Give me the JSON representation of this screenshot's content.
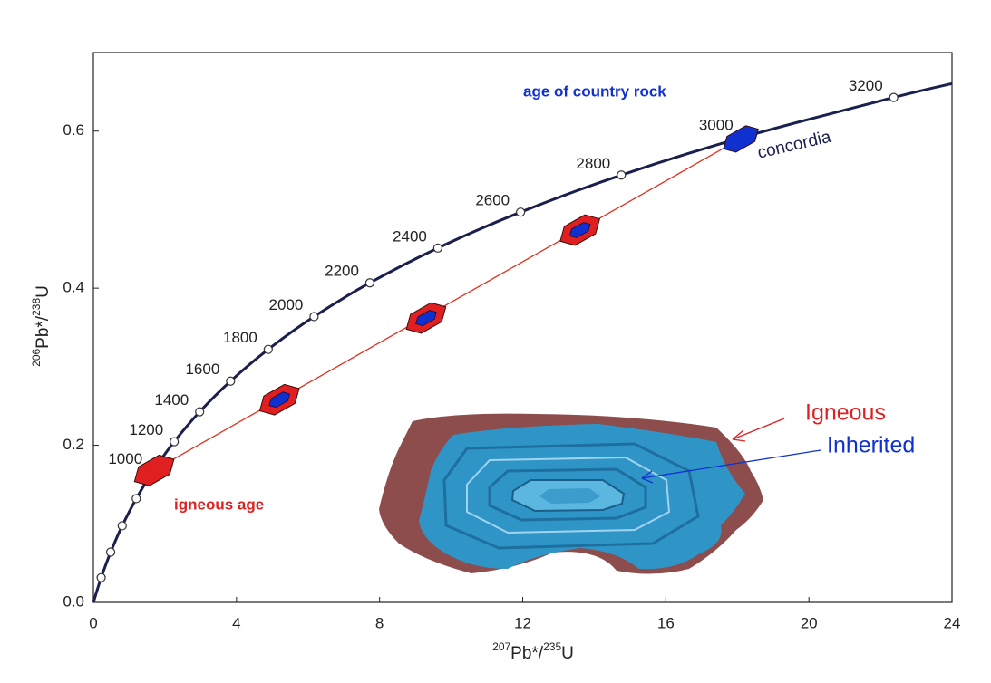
{
  "chart_data": {
    "type": "concordia",
    "xlabel": [
      "207",
      "Pb*/",
      "235",
      "U"
    ],
    "ylabel": [
      "206",
      "Pb*/",
      "238",
      "U"
    ],
    "xlim": [
      0,
      24
    ],
    "ylim": [
      0,
      0.7
    ],
    "xticks": [
      0,
      4,
      8,
      12,
      16,
      20,
      24
    ],
    "yticks": [
      {
        "value": 0,
        "label": "0.0"
      },
      0.2,
      0.4,
      0.6
    ],
    "concordia": {
      "name": "concordia",
      "color": "#1a1f4d",
      "x": [
        0,
        0.2177,
        0.4828,
        0.8056,
        1.1987,
        1.6774,
        2.2604,
        2.9702,
        3.8345,
        4.8868,
        6.1681,
        7.7281,
        9.6275,
        11.9403,
        14.7558,
        18.188,
        22.37,
        24
      ],
      "y": [
        0,
        0.0315,
        0.064,
        0.0975,
        0.1321,
        0.1678,
        0.2046,
        0.2426,
        0.2817,
        0.3221,
        0.3638,
        0.4068,
        0.4511,
        0.4968,
        0.544,
        0.5926,
        0.6428,
        0.6604
      ]
    },
    "markers": {
      "labels": [
        null,
        null,
        null,
        null,
        1000,
        1200,
        1400,
        1600,
        1800,
        2000,
        2200,
        2400,
        2600,
        2800,
        3000,
        3200
      ],
      "x": [
        0.2177,
        0.4828,
        0.8056,
        1.1987,
        1.6774,
        2.2604,
        2.9702,
        3.8345,
        4.8868,
        6.1681,
        7.7281,
        9.6275,
        11.9403,
        14.7558,
        18.188,
        22.37
      ],
      "y": [
        0.0315,
        0.064,
        0.0975,
        0.1321,
        0.1678,
        0.2046,
        0.2426,
        0.2817,
        0.3221,
        0.3638,
        0.4068,
        0.4511,
        0.4968,
        0.544,
        0.5926,
        0.6428
      ]
    },
    "discordia": {
      "color": "#e03020",
      "x": [
        1.68,
        18.19
      ],
      "y": [
        0.168,
        0.593
      ]
    },
    "analyses": {
      "x": [
        1.7,
        5.2,
        9.3,
        13.6,
        18.1
      ],
      "y": [
        0.168,
        0.258,
        0.362,
        0.474,
        0.59
      ],
      "colors": [
        "#e02020",
        "#e02020",
        "#e02020",
        "#e02020",
        "#1030d0"
      ],
      "inner_colors": [
        null,
        "#1030d0",
        "#1030d0",
        "#1030d0",
        null
      ]
    },
    "annotations": {
      "country_rock": "age of country rock",
      "igneous_age": "igneous age",
      "igneous": "Igneous",
      "inherited": "Inherited"
    }
  }
}
